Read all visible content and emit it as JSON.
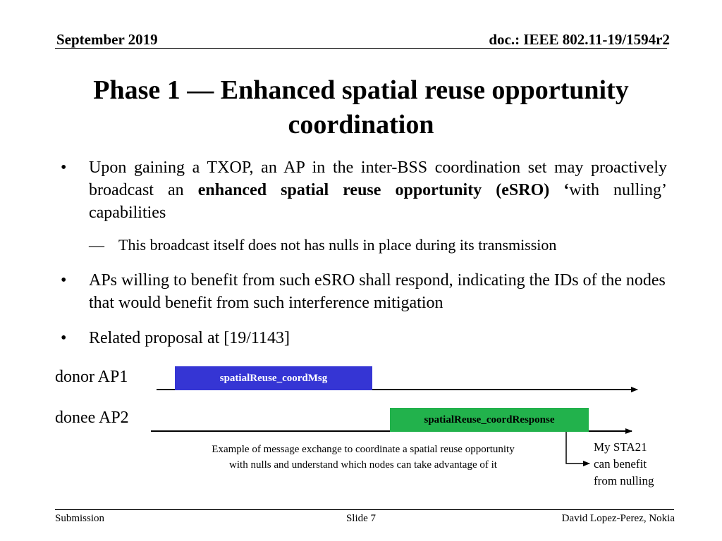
{
  "header": {
    "date": "September 2019",
    "doc": "doc.: IEEE 802.11-19/1594r2"
  },
  "title": {
    "line1": "Phase 1 — Enhanced spatial reuse opportunity",
    "line2": "coordination"
  },
  "bullets": {
    "marker": "•",
    "b1_part1": "Upon gaining a TXOP, an AP in the inter-BSS coordination set may proactively broadcast an ",
    "b1_bold": "enhanced spatial reuse opportunity (eSRO) ‘",
    "b1_part2": "with nulling’ capabilities",
    "sub_dash": "—",
    "sub1": "This broadcast itself does not has nulls in place during its transmission",
    "b2": "APs willing to benefit from such eSRO shall respond, indicating the IDs of the nodes that would benefit from such interference mitigation",
    "b3": "Related proposal at [19/1143]"
  },
  "diagram": {
    "lane1_label": "donor AP1",
    "lane2_label": "donee AP2",
    "msg1": "spatialReuse_coordMsg",
    "msg2": "spatialReuse_coordResponse",
    "caption_line1": "Example of message exchange to coordinate a spatial reuse opportunity",
    "caption_line2": "with nulls and understand which nodes can take advantage of it",
    "note_line1": "My STA21",
    "note_line2": "can benefit",
    "note_line3": "from nulling",
    "msg1_color": "#3535d4",
    "msg2_color": "#22b24c"
  },
  "footer": {
    "left": "Submission",
    "center": "Slide 7",
    "right": "David Lopez-Perez, Nokia"
  }
}
